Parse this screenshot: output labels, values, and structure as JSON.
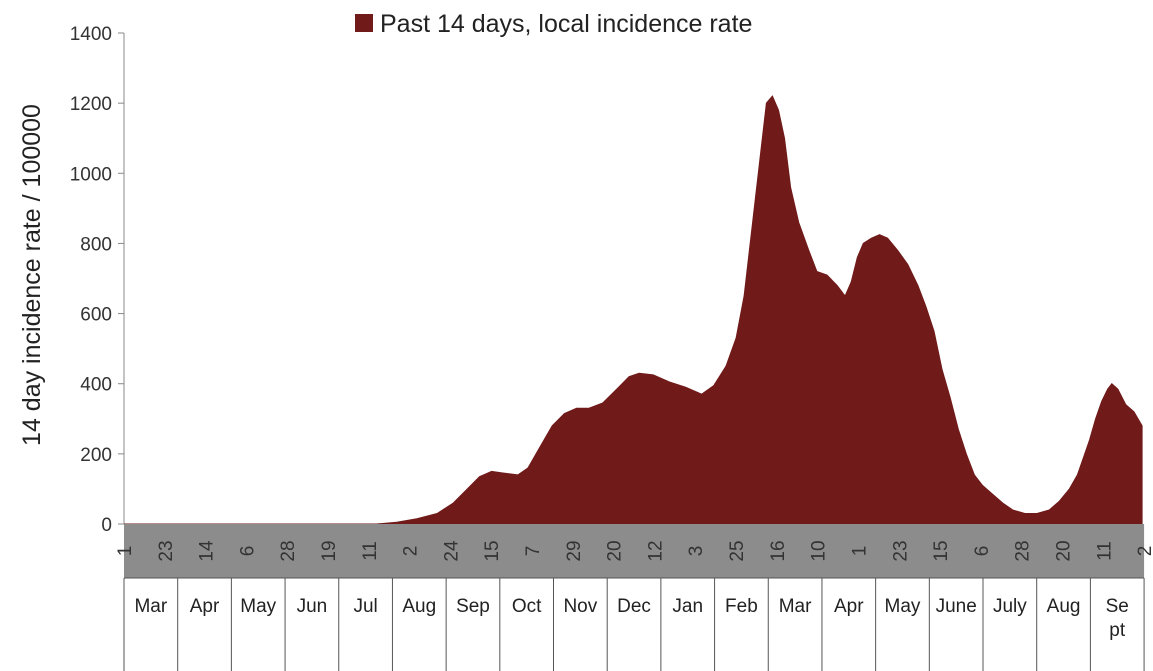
{
  "chart_data": {
    "type": "area",
    "ylabel": "14 day incidence rate / 100000",
    "ylim": [
      0,
      1400
    ],
    "yticks": [
      0,
      200,
      400,
      600,
      800,
      1000,
      1200,
      1400
    ],
    "grid": false,
    "legend_position": "top",
    "series": [
      {
        "name": "Past 14 days, local incidence rate",
        "color": "#701a1a",
        "points": [
          [
            0,
            0
          ],
          [
            60,
            0
          ],
          [
            125,
            0
          ],
          [
            135,
            5
          ],
          [
            145,
            15
          ],
          [
            155,
            30
          ],
          [
            163,
            60
          ],
          [
            170,
            100
          ],
          [
            176,
            135
          ],
          [
            182,
            150
          ],
          [
            188,
            145
          ],
          [
            195,
            140
          ],
          [
            200,
            160
          ],
          [
            206,
            220
          ],
          [
            212,
            280
          ],
          [
            218,
            315
          ],
          [
            224,
            330
          ],
          [
            230,
            330
          ],
          [
            237,
            345
          ],
          [
            244,
            385
          ],
          [
            250,
            420
          ],
          [
            255,
            430
          ],
          [
            262,
            425
          ],
          [
            270,
            405
          ],
          [
            278,
            390
          ],
          [
            286,
            370
          ],
          [
            292,
            395
          ],
          [
            298,
            450
          ],
          [
            303,
            530
          ],
          [
            307,
            650
          ],
          [
            311,
            850
          ],
          [
            315,
            1050
          ],
          [
            318,
            1200
          ],
          [
            321,
            1220
          ],
          [
            324,
            1180
          ],
          [
            327,
            1100
          ],
          [
            330,
            960
          ],
          [
            334,
            860
          ],
          [
            339,
            780
          ],
          [
            343,
            720
          ],
          [
            348,
            710
          ],
          [
            353,
            680
          ],
          [
            357,
            650
          ],
          [
            360,
            690
          ],
          [
            363,
            760
          ],
          [
            366,
            800
          ],
          [
            370,
            815
          ],
          [
            374,
            825
          ],
          [
            378,
            815
          ],
          [
            383,
            780
          ],
          [
            388,
            740
          ],
          [
            393,
            680
          ],
          [
            397,
            620
          ],
          [
            401,
            550
          ],
          [
            405,
            440
          ],
          [
            409,
            360
          ],
          [
            413,
            270
          ],
          [
            417,
            200
          ],
          [
            421,
            140
          ],
          [
            425,
            110
          ],
          [
            430,
            85
          ],
          [
            435,
            60
          ],
          [
            440,
            40
          ],
          [
            446,
            30
          ],
          [
            452,
            30
          ],
          [
            458,
            40
          ],
          [
            463,
            65
          ],
          [
            468,
            100
          ],
          [
            472,
            140
          ],
          [
            475,
            190
          ],
          [
            478,
            240
          ],
          [
            481,
            300
          ],
          [
            484,
            350
          ],
          [
            487,
            385
          ],
          [
            489,
            400
          ],
          [
            492,
            385
          ],
          [
            496,
            340
          ],
          [
            500,
            320
          ],
          [
            504,
            280
          ]
        ]
      }
    ],
    "x_ticks": [
      {
        "label": "1",
        "day": 0
      },
      {
        "label": "23",
        "day": 22
      },
      {
        "label": "14",
        "day": 44
      },
      {
        "label": "6",
        "day": 66
      },
      {
        "label": "28",
        "day": 88
      },
      {
        "label": "19",
        "day": 110
      },
      {
        "label": "11",
        "day": 132
      },
      {
        "label": "2",
        "day": 154
      },
      {
        "label": "24",
        "day": 176
      },
      {
        "label": "15",
        "day": 198
      },
      {
        "label": "7",
        "day": 220
      },
      {
        "label": "29",
        "day": 242
      },
      {
        "label": "20",
        "day": 264
      },
      {
        "label": "12",
        "day": 286
      },
      {
        "label": "3",
        "day": 308
      },
      {
        "label": "25",
        "day": 330
      },
      {
        "label": "16",
        "day": 352
      },
      {
        "label": "10",
        "day": 374
      },
      {
        "label": "1",
        "day": 396
      },
      {
        "label": "23",
        "day": 418
      },
      {
        "label": "15",
        "day": 440
      },
      {
        "label": "6",
        "day": 462
      },
      {
        "label": "28",
        "day": 484
      },
      {
        "label": "20",
        "day": 506
      },
      {
        "label": "11",
        "day": 528
      },
      {
        "label": "2",
        "day": 550
      }
    ],
    "months": [
      "Mar",
      "Apr",
      "May",
      "Jun",
      "Jul",
      "Aug",
      "Sep",
      "Oct",
      "Nov",
      "Dec",
      "Jan",
      "Feb",
      "Mar",
      "Apr",
      "May",
      "June",
      "July",
      "Aug",
      "Se pt"
    ]
  }
}
